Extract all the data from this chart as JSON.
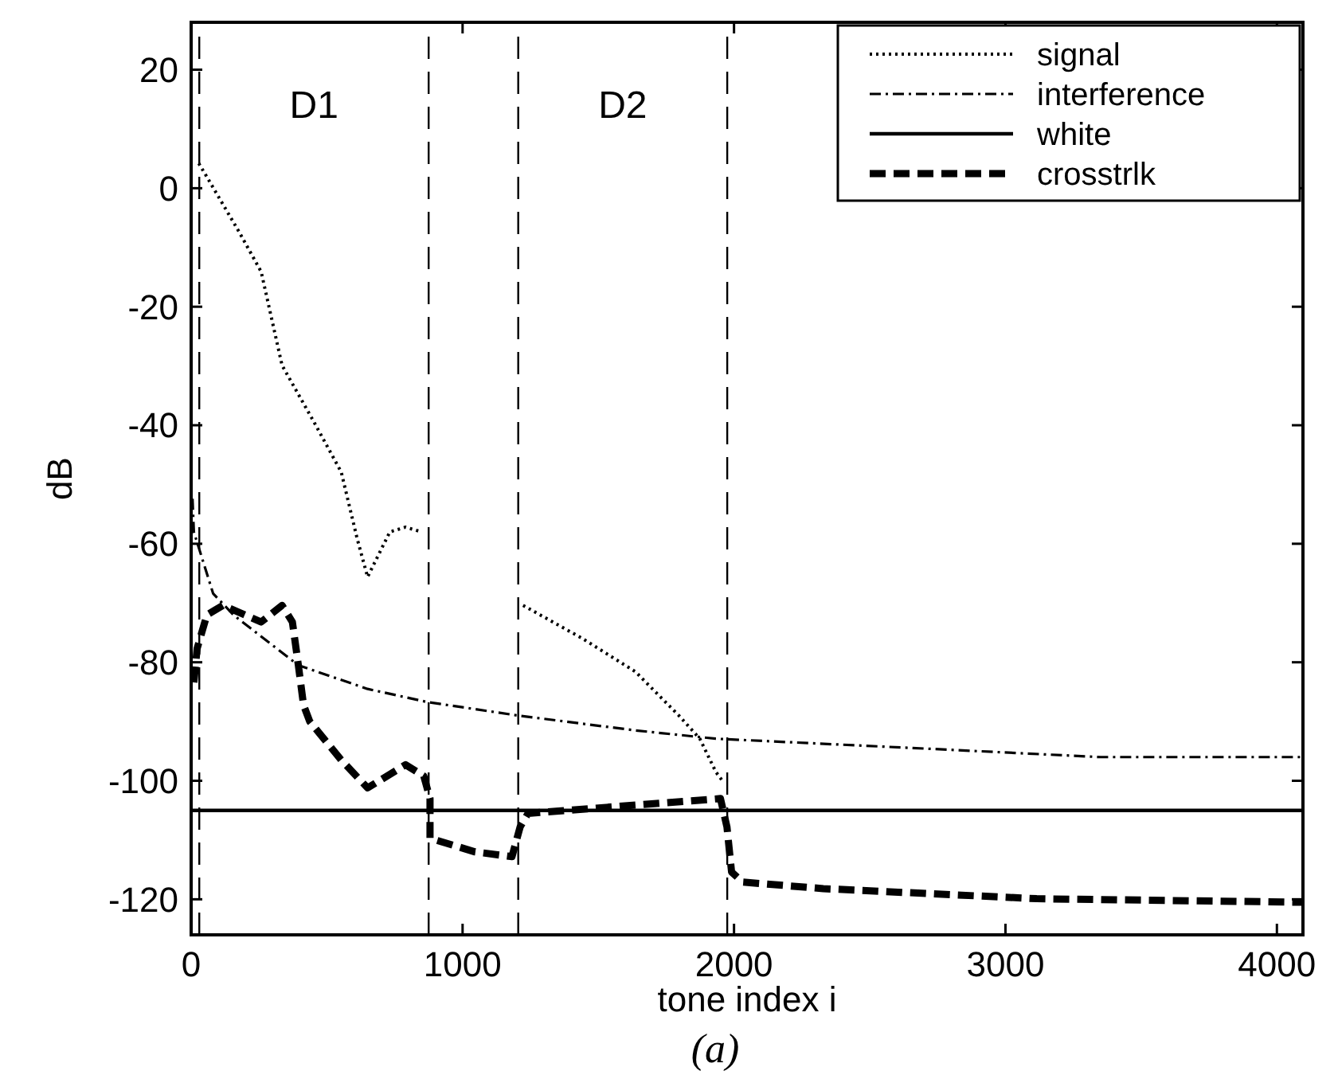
{
  "chart_data": {
    "type": "line",
    "xlabel": "tone index i",
    "ylabel": "dB",
    "xlim": [
      0,
      4096
    ],
    "xticks": [
      0,
      1000,
      2000,
      3000,
      4000
    ],
    "ylim": [
      -126,
      28
    ],
    "yticks": [
      20,
      0,
      -20,
      -40,
      -60,
      -80,
      -100,
      -120
    ],
    "grid": false,
    "legend": "top right",
    "series": [
      {
        "name": "signal",
        "color": "#000000",
        "line_style": "dotted",
        "x": [
          28,
          58,
          177,
          258,
          335,
          453,
          553,
          612,
          650,
          732,
          790,
          849,
          875,
          1205,
          1223,
          1442,
          1637,
          1797,
          1874,
          1933,
          1962
        ],
        "values": [
          4.2,
          1.9,
          -7.4,
          -14.1,
          -29.9,
          -39.5,
          -47.9,
          -59.2,
          -65.6,
          -58,
          -57.2,
          -58,
          null,
          null,
          -70.4,
          -76,
          -81.6,
          -89,
          -92.9,
          -98.5,
          -100.3
        ]
      },
      {
        "name": "interference",
        "color": "#000000",
        "line_style": "dashdot",
        "x": [
          5,
          10,
          81,
          158,
          395,
          650,
          869,
          1206,
          1637,
          1933,
          2719,
          3351,
          4096
        ],
        "values": [
          -52.4,
          -58,
          -68.4,
          -72.1,
          -80.5,
          -84.5,
          -86.7,
          -89,
          -91.5,
          -92.9,
          -94.6,
          -96,
          -96
        ]
      },
      {
        "name": "white",
        "color": "#000000",
        "line_style": "solid",
        "x": [
          0,
          1000,
          2000,
          3000,
          4096
        ],
        "values": [
          -105,
          -105,
          -105,
          -105,
          -105
        ]
      },
      {
        "name": "crosstrlk",
        "color": "#000000",
        "line_style": "dashed",
        "x": [
          10,
          22,
          58,
          117,
          258,
          335,
          373,
          395,
          414,
          437,
          553,
          650,
          790,
          857,
          880,
          880,
          1046,
          1182,
          1212,
          1241,
          1637,
          1950,
          1974,
          1991,
          2032,
          2329,
          3115,
          4096
        ],
        "values": [
          -83.4,
          -77.7,
          -72,
          -70.4,
          -73.2,
          -70.4,
          -73.2,
          -80.5,
          -87.2,
          -90,
          -96.5,
          -101.2,
          -97.3,
          -99.2,
          -103,
          -109.7,
          -112,
          -112.8,
          -107.8,
          -105.5,
          -104.1,
          -103,
          -107.8,
          -115.4,
          -117.1,
          -118.2,
          -119.9,
          -120.5
        ]
      }
    ],
    "ref_lines": [
      {
        "axis": "x",
        "value": 30,
        "line_style": "dashed"
      },
      {
        "axis": "x",
        "value": 875,
        "line_style": "dashed"
      },
      {
        "axis": "x",
        "value": 1205,
        "line_style": "dashed"
      },
      {
        "axis": "x",
        "value": 1975,
        "line_style": "dashed"
      }
    ],
    "annotations": [
      "D1",
      "D2",
      "(a)"
    ]
  }
}
